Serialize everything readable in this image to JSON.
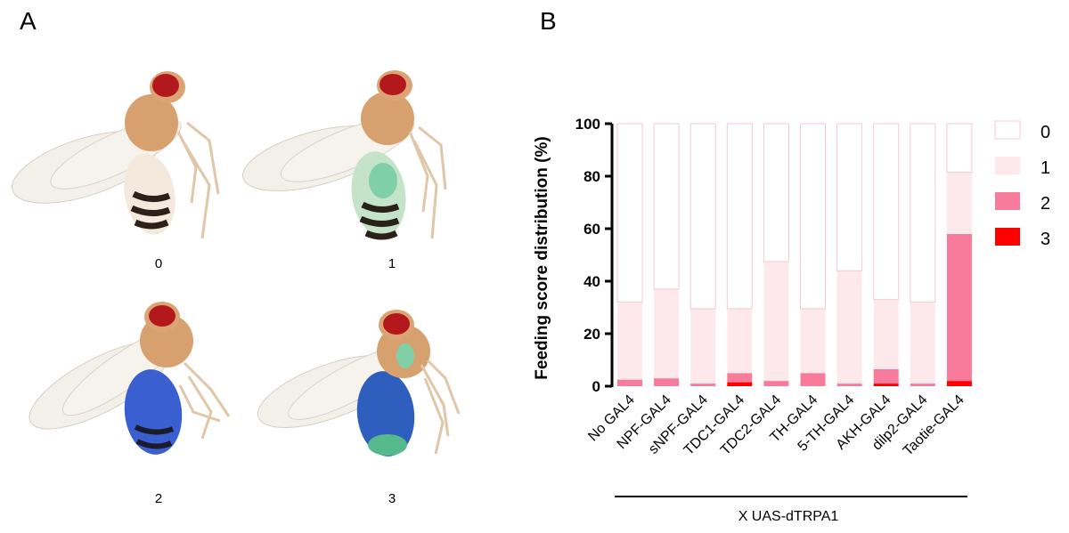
{
  "panels": {
    "a": "A",
    "b": "B"
  },
  "fly_scores": [
    "0",
    "1",
    "2",
    "3"
  ],
  "colors": {
    "score0": "#ffffff",
    "score0_stroke": "#f6c9d4",
    "score1": "#fde9ec",
    "score2": "#f97b9b",
    "score3": "#ff0000",
    "fly_blue": "#3a5fd0",
    "fly_green": "#7fd0a8"
  },
  "chart_data": {
    "type": "bar",
    "stacked": true,
    "title": "",
    "ylabel": "Feeding score distribution (%)",
    "xlabel": "X UAS-dTRPA1",
    "ylim": [
      0,
      100
    ],
    "yticks": [
      0,
      20,
      40,
      60,
      80,
      100
    ],
    "categories": [
      "No GAL4",
      "NPF-GAL4",
      "sNPF-GAL4",
      "TDC1-GAL4",
      "TDC2-GAL4",
      "TH-GAL4",
      "5-TH-GAL4",
      "AKH-GAL4",
      "dilp2-GAL4",
      "Taotie-GAL4"
    ],
    "series": [
      {
        "name": "3",
        "values": [
          0,
          0,
          0,
          1.5,
          0,
          0,
          0,
          1,
          0,
          2
        ]
      },
      {
        "name": "2",
        "values": [
          2.5,
          3,
          1,
          3.5,
          2,
          5,
          1,
          5.5,
          1,
          56
        ]
      },
      {
        "name": "1",
        "values": [
          29.5,
          34,
          28.5,
          24.5,
          45.5,
          24.5,
          43,
          26.5,
          31,
          23.5
        ]
      },
      {
        "name": "0",
        "values": [
          68,
          63,
          70.5,
          70.5,
          52.5,
          70.5,
          56,
          67,
          68,
          18.5
        ]
      }
    ],
    "legend": [
      "0",
      "1",
      "2",
      "3"
    ],
    "legend_position": "right"
  }
}
